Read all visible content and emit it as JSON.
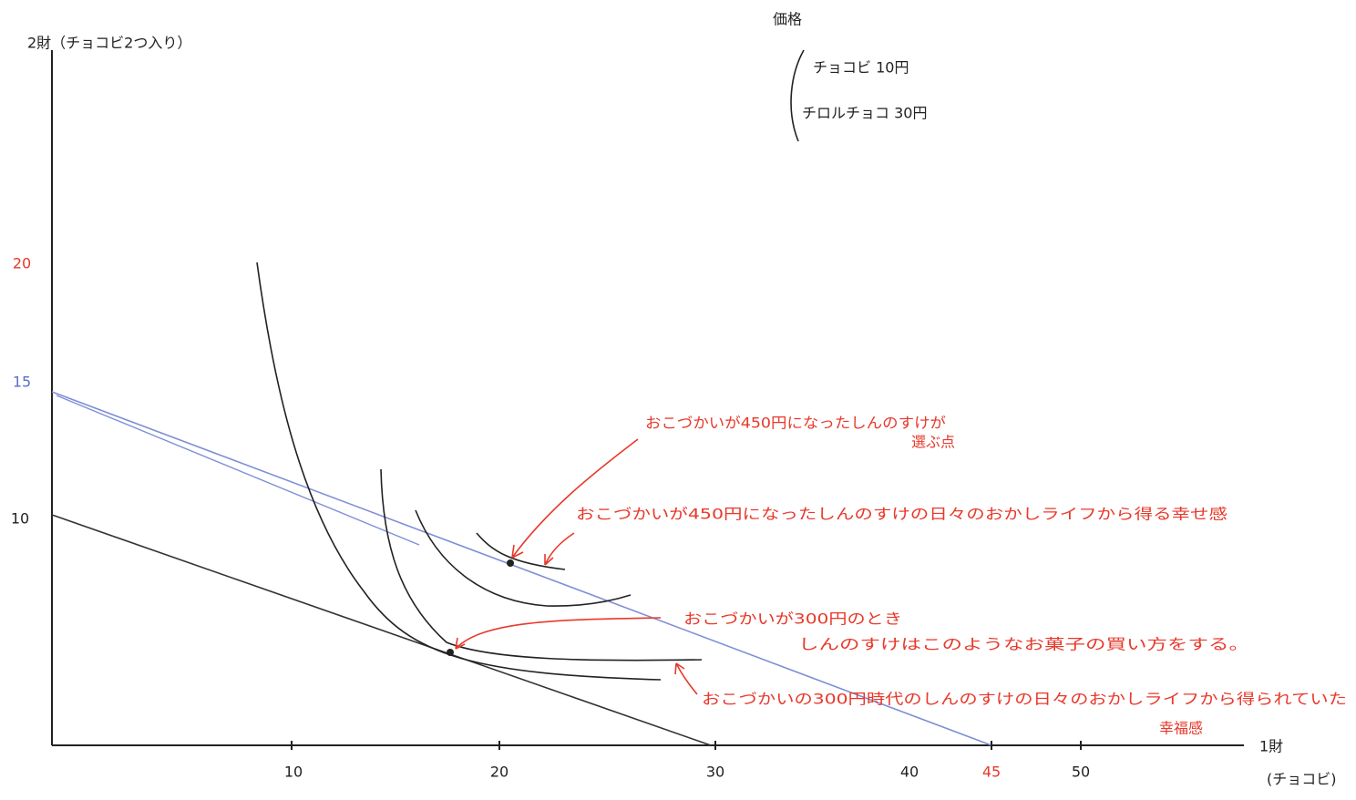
{
  "axes": {
    "y_label": "2財（チョコビ2つ入り）",
    "x_label": [
      "1財",
      "(チョコビ)"
    ],
    "x_ticks": [
      "10",
      "20",
      "30",
      "40",
      "45",
      "50"
    ],
    "y_ticks": [
      "20",
      "15",
      "10"
    ]
  },
  "prices": {
    "title": "価格",
    "items": [
      "チョコビ 10円",
      "チロルチョコ 30円"
    ]
  },
  "annotations": [
    {
      "lines": [
        "おこづかいが450円になったしんのすけが",
        "選ぶ点"
      ]
    },
    {
      "lines": [
        "おこづかいが450円になったしんのすけの日々のおかしライフから得る幸せ感"
      ]
    },
    {
      "lines": [
        "おこづかいが300円のとき",
        "しんのすけはこのようなお菓子の買い方をする。"
      ]
    },
    {
      "lines": [
        "おこづかいの300円時代のしんのすけの日々のおかしライフから得られていた",
        "幸福感"
      ]
    }
  ]
}
